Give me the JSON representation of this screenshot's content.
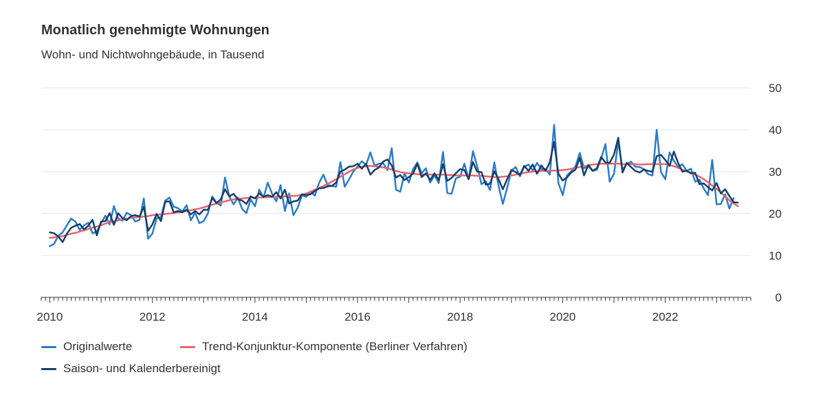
{
  "chart_data": {
    "type": "line",
    "title": "Monatlich genehmigte Wohnungen",
    "subtitle": "Wohn- und Nichtwohngebäude, in Tausend",
    "xlabel": "",
    "ylabel": "",
    "ylim": [
      0,
      50
    ],
    "xlim": [
      "2009-11",
      "2023-09"
    ],
    "y_ticks": [
      0,
      10,
      20,
      30,
      40,
      50
    ],
    "x_tick_labels": [
      "2010",
      "2012",
      "2014",
      "2016",
      "2018",
      "2020",
      "2022"
    ],
    "grid": true,
    "legend_position": "bottom",
    "x_start": "2010-01",
    "x_step": "1 month",
    "series": [
      {
        "name": "Originalwerte",
        "color": "#2b7bc6",
        "values": [
          12.2,
          12.8,
          14.7,
          15.5,
          17.2,
          18.8,
          18.1,
          16.1,
          17.2,
          17.8,
          15.3,
          15.7,
          17.7,
          19.5,
          17.4,
          21.8,
          18.8,
          18.3,
          20.2,
          19.6,
          18.1,
          18.5,
          23.6,
          14,
          15.2,
          18.9,
          19.1,
          23.1,
          23.8,
          21.6,
          21.3,
          20.5,
          22,
          18.4,
          20.2,
          17.7,
          18.2,
          20.1,
          24.1,
          22.6,
          21.9,
          28.6,
          24.1,
          22.2,
          23.8,
          21.1,
          20.1,
          23.4,
          21.7,
          25.7,
          23.8,
          27.4,
          24.7,
          22.9,
          26.8,
          20.6,
          24.8,
          19.6,
          21.4,
          24.4,
          24,
          25.3,
          24.3,
          27.3,
          29.3,
          26.8,
          26.6,
          26.4,
          32.3,
          26.4,
          28.1,
          30,
          31.2,
          32.5,
          31.6,
          34.6,
          31.4,
          31.9,
          32,
          30.4,
          35.6,
          25.7,
          25.2,
          29.6,
          27.4,
          30.6,
          32.2,
          29.6,
          30.8,
          27.4,
          29.1,
          27.3,
          34.7,
          24.9,
          24.7,
          28.4,
          28.8,
          31.9,
          28.2,
          34.9,
          31.3,
          27,
          27.7,
          25.6,
          32.2,
          26.6,
          22.3,
          26.1,
          30.3,
          31.1,
          28.9,
          31.2,
          31.7,
          30.3,
          32.1,
          30.6,
          30.6,
          29.3,
          41.2,
          27.3,
          24.4,
          29.1,
          30.1,
          31.3,
          34.5,
          30.8,
          31.3,
          30.2,
          30.5,
          33.1,
          36.6,
          27.6,
          29.5,
          37.3,
          30.5,
          31.8,
          32.4,
          31.2,
          31.1,
          30.6,
          29.4,
          29.1,
          40,
          29.9,
          28.2,
          34.6,
          32.6,
          31.1,
          31.8,
          30.2,
          30.7,
          27.6,
          28.1,
          26,
          24.4,
          32.8,
          22.2,
          22.3,
          24.6,
          21.2,
          23.7
        ]
      },
      {
        "name": "Trend-Konjunktur-Komponente (Berliner Verfahren)",
        "color": "#e8646e",
        "values": [
          14.2,
          14.3,
          14.4,
          14.6,
          14.9,
          15.2,
          15.4,
          15.7,
          16,
          16.3,
          16.6,
          16.9,
          17.2,
          17.6,
          17.9,
          18.1,
          18.4,
          18.6,
          18.8,
          19,
          19.1,
          19.2,
          19.3,
          19.4,
          19.6,
          19.7,
          19.8,
          19.9,
          20,
          20.1,
          20.3,
          20.4,
          20.6,
          20.8,
          21,
          21.2,
          21.5,
          21.8,
          22.1,
          22.4,
          22.7,
          22.9,
          23.2,
          23.4,
          23.5,
          23.6,
          23.7,
          23.8,
          23.8,
          23.8,
          23.9,
          23.9,
          24,
          24,
          24.1,
          24.1,
          24.2,
          24.2,
          24.3,
          24.5,
          24.8,
          25.2,
          25.7,
          26.1,
          26.6,
          27.1,
          27.6,
          28.2,
          28.8,
          29.4,
          30,
          30.5,
          30.9,
          31.2,
          31.3,
          31.4,
          31.3,
          31.2,
          31,
          30.8,
          30.5,
          30.2,
          29.9,
          29.7,
          29.6,
          29.5,
          29.4,
          29.3,
          29.3,
          29.3,
          29.3,
          29.3,
          29.3,
          29.2,
          29.2,
          29.1,
          29.1,
          29.1,
          29.1,
          29.1,
          29,
          29,
          28.9,
          28.8,
          28.7,
          28.7,
          28.8,
          28.9,
          29.1,
          29.3,
          29.5,
          29.7,
          29.9,
          30,
          30.1,
          30.2,
          30.2,
          30.2,
          30.3,
          30.3,
          30.4,
          30.5,
          30.7,
          30.9,
          31.1,
          31.3,
          31.5,
          31.7,
          31.8,
          31.9,
          31.9,
          31.9,
          31.9,
          31.9,
          31.8,
          31.8,
          31.8,
          31.8,
          31.7,
          31.7,
          31.8,
          31.8,
          31.8,
          31.8,
          31.8,
          31.6,
          31.3,
          30.9,
          30.5,
          30.1,
          29.7,
          29.3,
          28.8,
          28.2,
          27.5,
          26.7,
          25.9,
          25,
          24.1,
          23.2,
          22.4,
          21.8
        ]
      },
      {
        "name": "Saison- und Kalenderbereinigt",
        "color": "#173f66",
        "values": [
          15.5,
          15.3,
          14.5,
          13.2,
          15.2,
          16.6,
          17.1,
          17.5,
          16.2,
          17.1,
          18.5,
          14.8,
          18.1,
          18.2,
          20.1,
          17.3,
          20.1,
          18.9,
          18.4,
          19.4,
          19.6,
          19.3,
          21.6,
          15.9,
          17.4,
          19.9,
          18.2,
          22.8,
          22.9,
          20.3,
          20.6,
          20.3,
          20.9,
          19.8,
          20.6,
          19.8,
          20.9,
          20.9,
          23.7,
          22.5,
          23.4,
          25.8,
          24.1,
          24.7,
          23.4,
          23.1,
          22.3,
          24.1,
          23.6,
          24.8,
          24,
          24.4,
          24,
          25.1,
          23.6,
          25.7,
          22.4,
          22.9,
          23.1,
          24.6,
          24.4,
          24.6,
          25.4,
          26,
          26.1,
          26.5,
          26.6,
          27.4,
          30,
          30.5,
          31.2,
          31.3,
          31.9,
          30.7,
          31.9,
          29.3,
          30.4,
          31,
          32.4,
          32.9,
          31.5,
          28.6,
          29.2,
          28,
          28.7,
          29.6,
          31.9,
          28.7,
          29.6,
          28,
          29.6,
          28,
          31.8,
          27.8,
          28.5,
          29.6,
          30.6,
          30.4,
          28.2,
          32.3,
          30,
          29.9,
          26.9,
          27.1,
          30.1,
          28.2,
          25.8,
          28.2,
          30.4,
          29.9,
          29.2,
          31.4,
          30.2,
          31.7,
          29.5,
          31.5,
          30.2,
          32.3,
          37.1,
          29.5,
          27.9,
          28.6,
          29.8,
          30.5,
          33.3,
          29.1,
          31.6,
          30.2,
          30.8,
          33.5,
          32.2,
          32.1,
          34.1,
          38.1,
          29.8,
          32.1,
          31.1,
          30.2,
          29.8,
          30.5,
          30.2,
          30,
          33.7,
          34,
          32.8,
          31.4,
          34.8,
          32.1,
          30,
          30.2,
          29.6,
          29.7,
          27,
          27.2,
          26.3,
          25.5,
          27.3,
          24.8,
          25.8,
          24.2,
          22.7,
          22.6
        ]
      }
    ]
  }
}
